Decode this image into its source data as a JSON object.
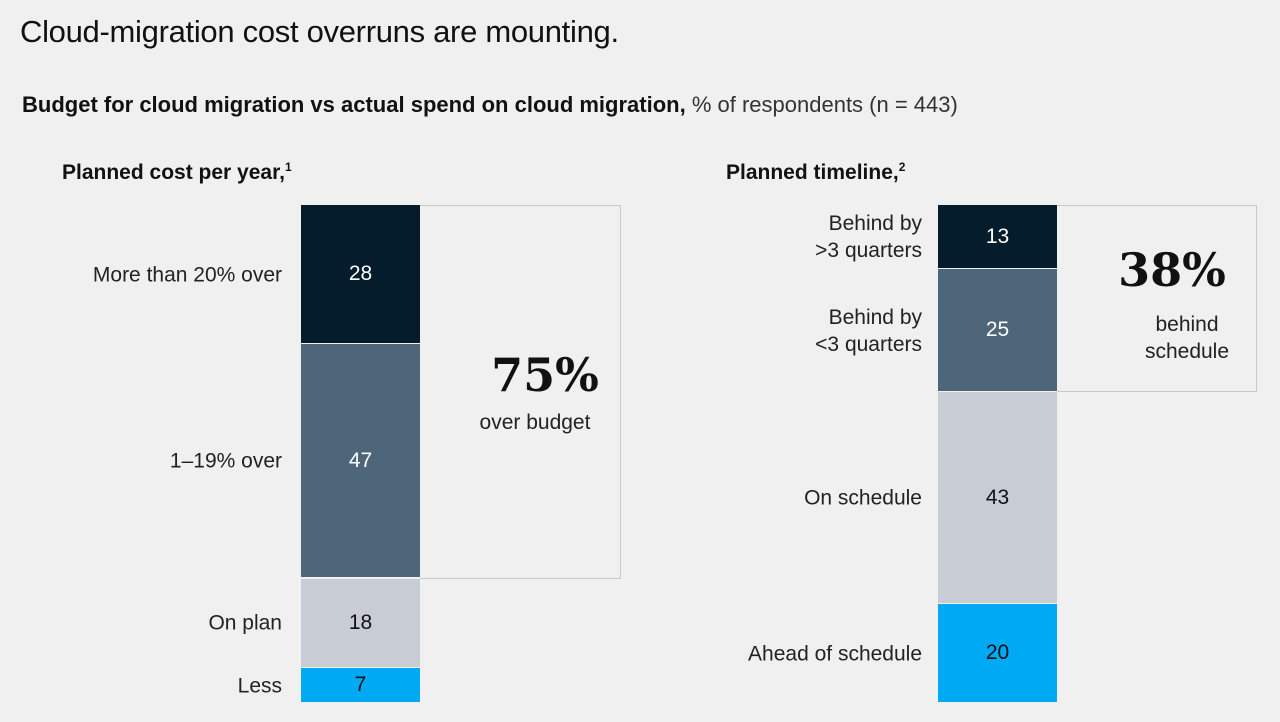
{
  "title": "Cloud-migration cost overruns are mounting.",
  "subtitle": {
    "bold": "Budget for cloud migration vs actual spend on cloud migration,",
    "rest": " % of respondents (n = 443)"
  },
  "chart_data": [
    {
      "type": "stacked-bar",
      "title": "Planned cost per year,",
      "footnote": "1",
      "categories": [
        "More than 20% over",
        "1–19% over",
        "On plan",
        "Less"
      ],
      "values": [
        28,
        47,
        18,
        7
      ],
      "colors": [
        "#051c2c",
        "#4e6679",
        "#c8ccd4",
        "#00a9f4"
      ],
      "callout": {
        "value": "75%",
        "text": "over budget",
        "covers": 2
      }
    },
    {
      "type": "stacked-bar",
      "title": "Planned timeline,",
      "footnote": "2",
      "categories": [
        "Behind by\n>3 quarters",
        "Behind by\n<3 quarters",
        "On schedule",
        "Ahead of schedule"
      ],
      "values": [
        13,
        25,
        43,
        20
      ],
      "colors": [
        "#051c2c",
        "#4e6679",
        "#c8ccd4",
        "#00a9f4"
      ],
      "callout": {
        "value": "38%",
        "text": "behind\nschedule",
        "covers": 2
      }
    }
  ]
}
